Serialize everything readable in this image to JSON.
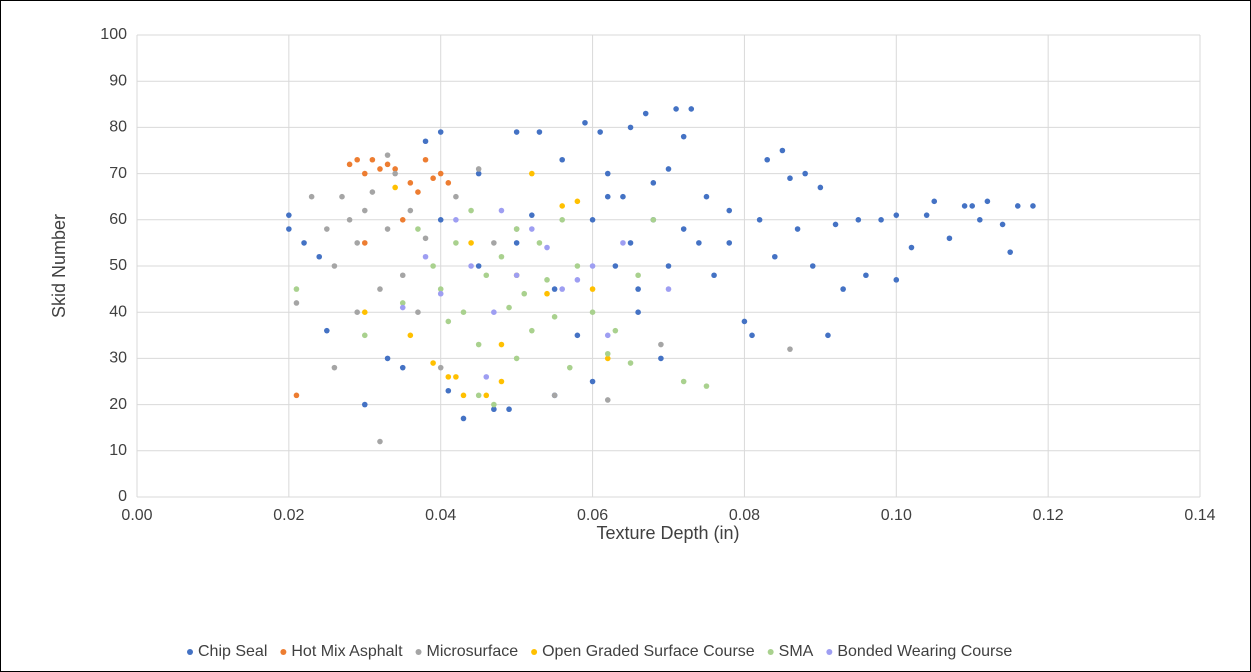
{
  "chart_data": {
    "type": "scatter",
    "x_label": "Texture Depth (in)",
    "y_label": "Skid Number",
    "xlim": [
      0,
      0.14
    ],
    "ylim": [
      0,
      100
    ],
    "xticks": [
      {
        "value": 0,
        "label": "0.00"
      },
      {
        "value": 0.02,
        "label": "0.02"
      },
      {
        "value": 0.04,
        "label": "0.04"
      },
      {
        "value": 0.06,
        "label": "0.06"
      },
      {
        "value": 0.08,
        "label": "0.08"
      },
      {
        "value": 0.1,
        "label": "0.10"
      },
      {
        "value": 0.12,
        "label": "0.12"
      },
      {
        "value": 0.14,
        "label": "0.14"
      }
    ],
    "yticks": [
      0,
      10,
      20,
      30,
      40,
      50,
      60,
      70,
      80,
      90,
      100
    ],
    "grid": true,
    "legend": "bottom",
    "series": [
      {
        "name": "Chip Seal",
        "color": "#4472c4",
        "x": [
          0.02,
          0.02,
          0.022,
          0.024,
          0.025,
          0.03,
          0.033,
          0.035,
          0.038,
          0.04,
          0.041,
          0.043,
          0.045,
          0.047,
          0.049,
          0.05,
          0.052,
          0.053,
          0.055,
          0.056,
          0.058,
          0.059,
          0.06,
          0.061,
          0.062,
          0.063,
          0.064,
          0.065,
          0.066,
          0.067,
          0.068,
          0.069,
          0.07,
          0.071,
          0.072,
          0.073,
          0.074,
          0.075,
          0.076,
          0.078,
          0.08,
          0.081,
          0.082,
          0.083,
          0.084,
          0.085,
          0.086,
          0.087,
          0.088,
          0.089,
          0.09,
          0.091,
          0.092,
          0.093,
          0.095,
          0.096,
          0.098,
          0.1,
          0.1,
          0.102,
          0.104,
          0.105,
          0.107,
          0.109,
          0.11,
          0.111,
          0.112,
          0.114,
          0.115,
          0.116,
          0.118,
          0.04,
          0.045,
          0.05,
          0.055,
          0.06,
          0.065,
          0.07,
          0.066,
          0.062,
          0.068,
          0.072,
          0.078
        ],
        "values": [
          61,
          58,
          55,
          52,
          36,
          20,
          30,
          28,
          77,
          79,
          23,
          17,
          70,
          19,
          19,
          79,
          61,
          79,
          22,
          73,
          35,
          81,
          25,
          79,
          70,
          50,
          65,
          80,
          45,
          83,
          60,
          30,
          71,
          84,
          78,
          84,
          55,
          65,
          48,
          62,
          38,
          35,
          60,
          73,
          52,
          75,
          69,
          58,
          70,
          50,
          67,
          35,
          59,
          45,
          60,
          48,
          60,
          47,
          61,
          54,
          61,
          64,
          56,
          63,
          63,
          60,
          64,
          59,
          53,
          63,
          63,
          60,
          50,
          55,
          45,
          60,
          55,
          50,
          40,
          65,
          68,
          58,
          55
        ]
      },
      {
        "name": "Hot Mix Asphalt",
        "color": "#ed7d31",
        "x": [
          0.021,
          0.028,
          0.029,
          0.03,
          0.031,
          0.032,
          0.033,
          0.034,
          0.036,
          0.038,
          0.039,
          0.04,
          0.035,
          0.037,
          0.03,
          0.041
        ],
        "values": [
          22,
          72,
          73,
          70,
          73,
          71,
          72,
          71,
          68,
          73,
          69,
          70,
          60,
          66,
          55,
          68
        ]
      },
      {
        "name": "Microsurface",
        "color": "#a5a5a5",
        "x": [
          0.021,
          0.023,
          0.025,
          0.026,
          0.027,
          0.028,
          0.029,
          0.03,
          0.031,
          0.032,
          0.033,
          0.033,
          0.034,
          0.035,
          0.036,
          0.037,
          0.038,
          0.04,
          0.042,
          0.045,
          0.047,
          0.05,
          0.055,
          0.062,
          0.069,
          0.086,
          0.029,
          0.026,
          0.032
        ],
        "values": [
          42,
          65,
          58,
          50,
          65,
          60,
          55,
          62,
          66,
          12,
          74,
          58,
          70,
          48,
          62,
          40,
          56,
          28,
          65,
          71,
          55,
          58,
          22,
          21,
          33,
          32,
          40,
          28,
          45
        ]
      },
      {
        "name": "Open Graded Surface Course",
        "color": "#ffc000",
        "x": [
          0.03,
          0.034,
          0.036,
          0.039,
          0.041,
          0.042,
          0.043,
          0.046,
          0.048,
          0.05,
          0.052,
          0.054,
          0.056,
          0.058,
          0.06,
          0.062,
          0.044,
          0.048
        ],
        "values": [
          40,
          67,
          35,
          29,
          26,
          26,
          22,
          22,
          25,
          48,
          70,
          44,
          63,
          64,
          45,
          30,
          55,
          33
        ]
      },
      {
        "name": "SMA",
        "color": "#a9d18e",
        "x": [
          0.021,
          0.03,
          0.035,
          0.037,
          0.039,
          0.04,
          0.041,
          0.042,
          0.043,
          0.044,
          0.045,
          0.046,
          0.047,
          0.048,
          0.049,
          0.05,
          0.051,
          0.052,
          0.053,
          0.054,
          0.055,
          0.056,
          0.057,
          0.058,
          0.06,
          0.062,
          0.063,
          0.065,
          0.066,
          0.068,
          0.072,
          0.075,
          0.045,
          0.05
        ],
        "values": [
          45,
          35,
          42,
          58,
          50,
          45,
          38,
          55,
          40,
          62,
          22,
          48,
          20,
          52,
          41,
          58,
          44,
          36,
          55,
          47,
          39,
          60,
          28,
          50,
          40,
          31,
          36,
          29,
          48,
          60,
          25,
          24,
          33,
          30
        ]
      },
      {
        "name": "Bonded Wearing Course",
        "color": "#9e9ef2",
        "x": [
          0.035,
          0.038,
          0.04,
          0.042,
          0.044,
          0.046,
          0.047,
          0.048,
          0.05,
          0.052,
          0.054,
          0.056,
          0.058,
          0.06,
          0.062,
          0.064,
          0.07
        ],
        "values": [
          41,
          52,
          44,
          60,
          50,
          26,
          40,
          62,
          48,
          58,
          54,
          45,
          47,
          50,
          35,
          55,
          45
        ]
      }
    ]
  }
}
